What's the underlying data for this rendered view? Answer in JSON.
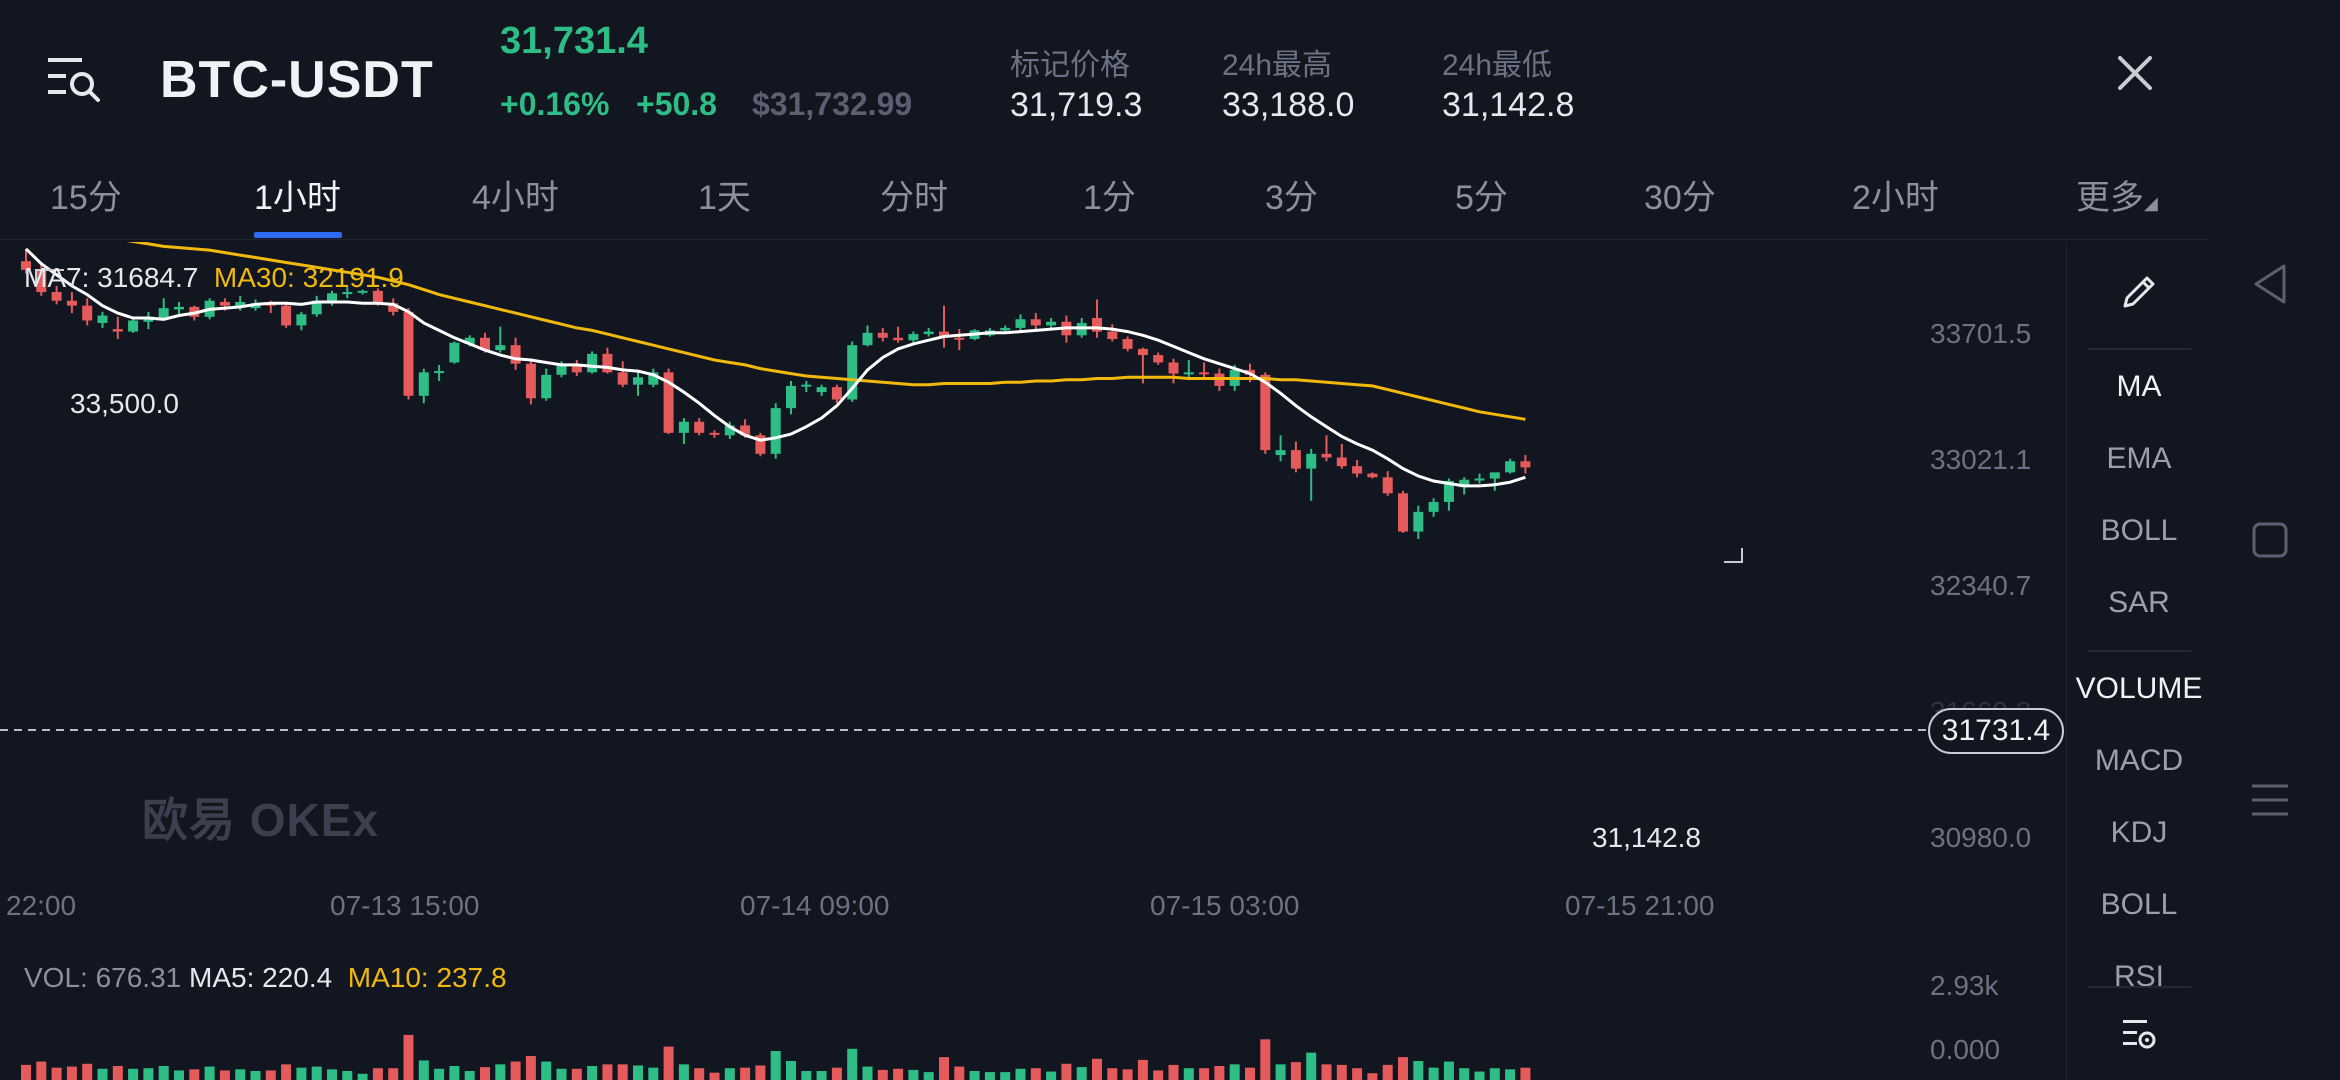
{
  "header": {
    "pair": "BTC-USDT",
    "last_price": "31,731.4",
    "change_pct": "+0.16%",
    "change_abs": "+50.8",
    "usd_price": "$31,732.99",
    "stats": [
      {
        "label": "标记价格",
        "value": "31,719.3"
      },
      {
        "label": "24h最高",
        "value": "33,188.0"
      },
      {
        "label": "24h最低",
        "value": "31,142.8"
      }
    ]
  },
  "tabs": [
    {
      "label": "15分"
    },
    {
      "label": "1小时",
      "active": true
    },
    {
      "label": "4小时"
    },
    {
      "label": "1天"
    },
    {
      "label": "分时"
    },
    {
      "label": "1分"
    },
    {
      "label": "3分"
    },
    {
      "label": "5分"
    },
    {
      "label": "30分"
    },
    {
      "label": "2小时"
    },
    {
      "label": "更多"
    }
  ],
  "rail": {
    "draw_icon": "pencil-icon",
    "main_indicators": [
      "MA",
      "EMA",
      "BOLL",
      "SAR"
    ],
    "sub_indicators": [
      "VOLUME",
      "MACD",
      "KDJ",
      "BOLL",
      "RSI"
    ],
    "settings_icon": "indicator-settings-icon"
  },
  "legend": {
    "ma7_label": "MA7: 31684.7",
    "ma30_label": "MA30: 32191.9",
    "vol_label": "VOL: 676.31",
    "ma5_label": "MA5: 220.4",
    "ma10_label": "MA10: 237.8"
  },
  "watermark": "欧易 OKEx",
  "current_price_tag": "31731.4",
  "high_label": "33,500.0",
  "low_label": "31,142.8",
  "colors": {
    "up": "#2ebd85",
    "down": "#e55a5a",
    "ma7": "#ffffff",
    "ma30": "#f0b90b",
    "accent": "#2f6cf6"
  },
  "chart_data": {
    "type": "candlestick",
    "y_ticks": [
      "33701.5",
      "33021.1",
      "32340.7",
      "31660.3",
      "30980.0"
    ],
    "x_ticks": [
      "22:00",
      "07-13 15:00",
      "07-14 09:00",
      "07-15 03:00",
      "07-15 21:00"
    ],
    "vol_ticks": [
      "2.93k",
      "0.000"
    ],
    "ylim": [
      30900,
      33800
    ],
    "ohlc": [
      [
        33400,
        33500,
        33300,
        33330
      ],
      [
        33330,
        33380,
        33120,
        33150
      ],
      [
        33150,
        33200,
        33050,
        33080
      ],
      [
        33080,
        33150,
        32980,
        33040
      ],
      [
        33040,
        33100,
        32880,
        32920
      ],
      [
        32900,
        32990,
        32860,
        32960
      ],
      [
        32850,
        32950,
        32770,
        32830
      ],
      [
        32830,
        32950,
        32820,
        32920
      ],
      [
        32910,
        32990,
        32850,
        32950
      ],
      [
        32940,
        33100,
        32920,
        33020
      ],
      [
        33010,
        33070,
        32970,
        33030
      ],
      [
        33030,
        33040,
        32920,
        32950
      ],
      [
        32950,
        33100,
        32930,
        33080
      ],
      [
        33070,
        33100,
        33000,
        33040
      ],
      [
        33030,
        33120,
        33000,
        33070
      ],
      [
        33020,
        33090,
        33000,
        33060
      ],
      [
        33060,
        33080,
        32980,
        33040
      ],
      [
        33040,
        33070,
        32860,
        32880
      ],
      [
        32880,
        32990,
        32840,
        32970
      ],
      [
        32970,
        33120,
        32950,
        33080
      ],
      [
        33080,
        33160,
        33040,
        33140
      ],
      [
        33140,
        33190,
        33100,
        33150
      ],
      [
        33150,
        33170,
        33130,
        33160
      ],
      [
        33160,
        33180,
        33040,
        33060
      ],
      [
        33060,
        33100,
        32960,
        32990
      ],
      [
        32990,
        33020,
        32280,
        32310
      ],
      [
        32310,
        32530,
        32250,
        32500
      ],
      [
        32500,
        32560,
        32430,
        32510
      ],
      [
        32580,
        32750,
        32570,
        32740
      ],
      [
        32730,
        32800,
        32710,
        32780
      ],
      [
        32780,
        32820,
        32660,
        32680
      ],
      [
        32680,
        32870,
        32660,
        32720
      ],
      [
        32720,
        32780,
        32520,
        32570
      ],
      [
        32570,
        32600,
        32240,
        32290
      ],
      [
        32290,
        32530,
        32270,
        32480
      ],
      [
        32480,
        32590,
        32460,
        32560
      ],
      [
        32560,
        32600,
        32470,
        32500
      ],
      [
        32500,
        32670,
        32490,
        32650
      ],
      [
        32650,
        32700,
        32490,
        32500
      ],
      [
        32500,
        32590,
        32380,
        32400
      ],
      [
        32400,
        32500,
        32310,
        32460
      ],
      [
        32400,
        32530,
        32380,
        32500
      ],
      [
        32500,
        32530,
        32000,
        32010
      ],
      [
        32010,
        32130,
        31920,
        32100
      ],
      [
        32100,
        32130,
        31990,
        32010
      ],
      [
        32010,
        32030,
        31970,
        32000
      ],
      [
        31990,
        32100,
        31960,
        32070
      ],
      [
        32070,
        32120,
        31970,
        31990
      ],
      [
        31990,
        32010,
        31820,
        31840
      ],
      [
        31840,
        32250,
        31800,
        32210
      ],
      [
        32210,
        32430,
        32160,
        32390
      ],
      [
        32390,
        32430,
        32340,
        32400
      ],
      [
        32340,
        32400,
        32310,
        32380
      ],
      [
        32380,
        32400,
        32250,
        32280
      ],
      [
        32280,
        32750,
        32260,
        32720
      ],
      [
        32720,
        32880,
        32710,
        32820
      ],
      [
        32820,
        32860,
        32750,
        32780
      ],
      [
        32780,
        32870,
        32740,
        32760
      ],
      [
        32760,
        32830,
        32720,
        32810
      ],
      [
        32810,
        32860,
        32790,
        32830
      ],
      [
        32830,
        33040,
        32700,
        32780
      ],
      [
        32780,
        32850,
        32680,
        32770
      ],
      [
        32770,
        32850,
        32760,
        32840
      ],
      [
        32800,
        32860,
        32790,
        32840
      ],
      [
        32840,
        32880,
        32810,
        32860
      ],
      [
        32860,
        32970,
        32840,
        32930
      ],
      [
        32930,
        32980,
        32840,
        32880
      ],
      [
        32880,
        32940,
        32860,
        32910
      ],
      [
        32910,
        32960,
        32740,
        32800
      ],
      [
        32800,
        32940,
        32780,
        32900
      ],
      [
        32940,
        33090,
        32780,
        32830
      ],
      [
        32830,
        32890,
        32750,
        32770
      ],
      [
        32770,
        32790,
        32670,
        32690
      ],
      [
        32690,
        32700,
        32410,
        32640
      ],
      [
        32640,
        32660,
        32560,
        32580
      ],
      [
        32580,
        32610,
        32410,
        32490
      ],
      [
        32490,
        32600,
        32460,
        32500
      ],
      [
        32500,
        32580,
        32440,
        32490
      ],
      [
        32490,
        32530,
        32350,
        32390
      ],
      [
        32390,
        32560,
        32350,
        32520
      ],
      [
        32520,
        32570,
        32420,
        32480
      ],
      [
        32480,
        32500,
        31840,
        31870
      ],
      [
        31830,
        31990,
        31780,
        31870
      ],
      [
        31870,
        31940,
        31690,
        31720
      ],
      [
        31720,
        31880,
        31460,
        31840
      ],
      [
        31840,
        31990,
        31780,
        31810
      ],
      [
        31810,
        31920,
        31720,
        31740
      ],
      [
        31740,
        31790,
        31650,
        31680
      ],
      [
        31680,
        31690,
        31640,
        31650
      ],
      [
        31650,
        31700,
        31500,
        31520
      ],
      [
        31520,
        31540,
        31200,
        31210
      ],
      [
        31210,
        31420,
        31150,
        31370
      ],
      [
        31370,
        31480,
        31330,
        31450
      ],
      [
        31450,
        31640,
        31380,
        31620
      ],
      [
        31570,
        31650,
        31510,
        31630
      ],
      [
        31630,
        31680,
        31600,
        31640
      ],
      [
        31640,
        31680,
        31540,
        31690
      ],
      [
        31690,
        31800,
        31680,
        31780
      ],
      [
        31780,
        31830,
        31680,
        31730
      ]
    ],
    "ma7": [
      33500,
      33380,
      33290,
      33200,
      33130,
      33040,
      32980,
      32940,
      32940,
      32930,
      32960,
      32980,
      33010,
      33020,
      33030,
      33050,
      33060,
      33060,
      33050,
      33070,
      33070,
      33070,
      33060,
      33060,
      33050,
      32990,
      32900,
      32840,
      32780,
      32730,
      32680,
      32640,
      32610,
      32600,
      32580,
      32560,
      32560,
      32550,
      32540,
      32520,
      32510,
      32480,
      32420,
      32340,
      32250,
      32150,
      32060,
      31990,
      31950,
      31970,
      32000,
      32060,
      32130,
      32230,
      32370,
      32520,
      32620,
      32690,
      32730,
      32760,
      32790,
      32800,
      32810,
      32820,
      32820,
      32830,
      32840,
      32850,
      32860,
      32860,
      32860,
      32850,
      32830,
      32800,
      32760,
      32710,
      32660,
      32610,
      32570,
      32530,
      32490,
      32420,
      32330,
      32230,
      32140,
      32060,
      31980,
      31920,
      31870,
      31800,
      31720,
      31660,
      31620,
      31600,
      31580,
      31580,
      31590,
      31610,
      31650
    ],
    "ma30": [
      33700,
      33680,
      33660,
      33640,
      33620,
      33600,
      33580,
      33560,
      33540,
      33520,
      33510,
      33500,
      33490,
      33470,
      33450,
      33430,
      33410,
      33390,
      33370,
      33350,
      33330,
      33310,
      33290,
      33270,
      33240,
      33210,
      33170,
      33130,
      33100,
      33070,
      33040,
      33010,
      32980,
      32950,
      32920,
      32890,
      32860,
      32840,
      32810,
      32780,
      32750,
      32720,
      32690,
      32660,
      32630,
      32600,
      32580,
      32560,
      32530,
      32510,
      32490,
      32470,
      32460,
      32450,
      32440,
      32430,
      32420,
      32410,
      32400,
      32400,
      32410,
      32410,
      32410,
      32410,
      32420,
      32420,
      32430,
      32430,
      32440,
      32440,
      32450,
      32450,
      32460,
      32460,
      32460,
      32460,
      32450,
      32450,
      32450,
      32450,
      32450,
      32450,
      32440,
      32440,
      32430,
      32420,
      32410,
      32400,
      32390,
      32360,
      32330,
      32300,
      32270,
      32240,
      32210,
      32180,
      32160,
      32140,
      32120
    ],
    "volume_scale_max": 2930
  }
}
